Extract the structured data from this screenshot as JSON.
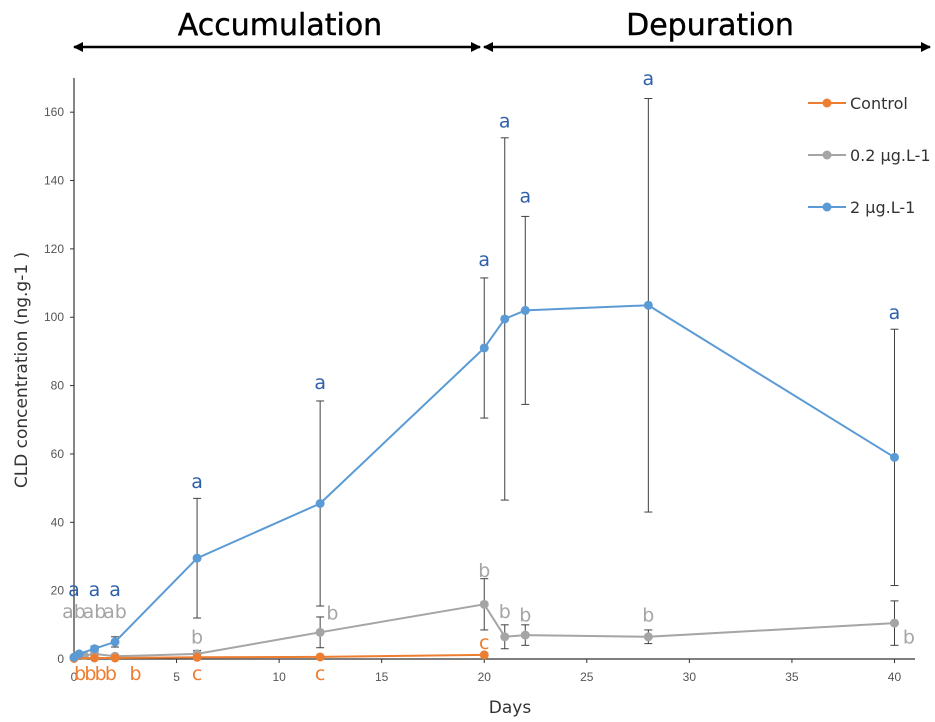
{
  "phases": {
    "accumulation": "Accumulation",
    "depuration": "Depuration"
  },
  "colors": {
    "control": "#ED7D31",
    "low": "#A5A5A5",
    "high": "#5B9BD5",
    "letter_high": "#2E5FA8",
    "letter_low": "#A5A5A5",
    "letter_control": "#ED7D31"
  },
  "chart_data": {
    "type": "line",
    "xlabel": "Days",
    "ylabel": "CLD concentration (ng.g-1 )",
    "xlim": [
      0,
      41
    ],
    "ylim": [
      0,
      170
    ],
    "xticks": [
      0,
      5,
      10,
      15,
      20,
      25,
      30,
      35,
      40
    ],
    "yticks": [
      0,
      20,
      40,
      60,
      80,
      100,
      120,
      140,
      160
    ],
    "phase_boundary_day": 20,
    "legend_position": "top-right",
    "series": [
      {
        "name": "Control",
        "color": "#ED7D31",
        "points": [
          {
            "x": 0,
            "y": 0.2
          },
          {
            "x": 1,
            "y": 0.3
          },
          {
            "x": 2,
            "y": 0.3
          },
          {
            "x": 6,
            "y": 0.5
          },
          {
            "x": 12,
            "y": 0.6
          },
          {
            "x": 20,
            "y": 1.2
          }
        ],
        "letters": [
          {
            "x": 0.3,
            "text": "b",
            "pos": "below"
          },
          {
            "x": 0.8,
            "text": "b",
            "pos": "below"
          },
          {
            "x": 1.3,
            "text": "b",
            "pos": "below"
          },
          {
            "x": 1.8,
            "text": "b",
            "pos": "below"
          },
          {
            "x": 3,
            "text": "b",
            "pos": "below"
          },
          {
            "x": 6,
            "text": "c",
            "pos": "below"
          },
          {
            "x": 12,
            "text": "c",
            "pos": "below"
          },
          {
            "x": 20,
            "text": "c",
            "pos": "above",
            "y": 1.2
          }
        ]
      },
      {
        "name": "0.2 µg.L-1",
        "color": "#A5A5A5",
        "points": [
          {
            "x": 0,
            "y": 0.5,
            "err": 0.5
          },
          {
            "x": 0.5,
            "y": 1,
            "err": 0.5
          },
          {
            "x": 1,
            "y": 1.5,
            "err": 0.8
          },
          {
            "x": 2,
            "y": 0.8,
            "err": 0.5
          },
          {
            "x": 6,
            "y": 1.5,
            "err": 1
          },
          {
            "x": 12,
            "y": 7.8,
            "err": 4.5
          },
          {
            "x": 20,
            "y": 16,
            "err": 7.5
          },
          {
            "x": 21,
            "y": 6.5,
            "err": 3.5
          },
          {
            "x": 22,
            "y": 7,
            "err": 3
          },
          {
            "x": 28,
            "y": 6.5,
            "err": 2
          },
          {
            "x": 40,
            "y": 10.5,
            "err": 6.5
          }
        ],
        "letters": [
          {
            "x": 0,
            "text": "ab",
            "y": 12
          },
          {
            "x": 1,
            "text": "ab",
            "y": 12
          },
          {
            "x": 2,
            "text": "ab",
            "y": 12
          },
          {
            "x": 6,
            "text": "b",
            "y": 4.5
          },
          {
            "x": 12.6,
            "text": "b",
            "y": 11.5
          },
          {
            "x": 20,
            "text": "b",
            "y": 24
          },
          {
            "x": 21,
            "text": "b",
            "y": 12
          },
          {
            "x": 22,
            "text": "b",
            "y": 11
          },
          {
            "x": 28,
            "text": "b",
            "y": 11
          },
          {
            "x": 40.7,
            "text": "b",
            "y": 4.5
          }
        ]
      },
      {
        "name": "2 µg.L-1",
        "color": "#5B9BD5",
        "points": [
          {
            "x": 0,
            "y": 0.5,
            "err": 0.5
          },
          {
            "x": 0.25,
            "y": 1.5,
            "err": 0.5
          },
          {
            "x": 1,
            "y": 3,
            "err": 0.8
          },
          {
            "x": 2,
            "y": 5,
            "err": 1.5
          },
          {
            "x": 6,
            "y": 29.5,
            "err": 17.5
          },
          {
            "x": 12,
            "y": 45.5,
            "err": 30
          },
          {
            "x": 20,
            "y": 91,
            "err": 20.5
          },
          {
            "x": 21,
            "y": 99.5,
            "err": 53
          },
          {
            "x": 22,
            "y": 102,
            "err": 27.5
          },
          {
            "x": 28,
            "y": 103.5,
            "err": 60.5
          },
          {
            "x": 40,
            "y": 59,
            "err": 37.5
          }
        ],
        "letters": [
          {
            "x": 0,
            "text": "a",
            "y": 18.5
          },
          {
            "x": 1,
            "text": "a",
            "y": 18.5
          },
          {
            "x": 2,
            "text": "a",
            "y": 18.5
          },
          {
            "x": 6,
            "text": "a",
            "y": 50
          },
          {
            "x": 12,
            "text": "a",
            "y": 79
          },
          {
            "x": 20,
            "text": "a",
            "y": 115
          },
          {
            "x": 21,
            "text": "a",
            "y": 155.5
          },
          {
            "x": 22,
            "text": "a",
            "y": 133.5
          },
          {
            "x": 28,
            "text": "a",
            "y": 168
          },
          {
            "x": 40,
            "text": "a",
            "y": 99.5
          }
        ]
      }
    ]
  }
}
